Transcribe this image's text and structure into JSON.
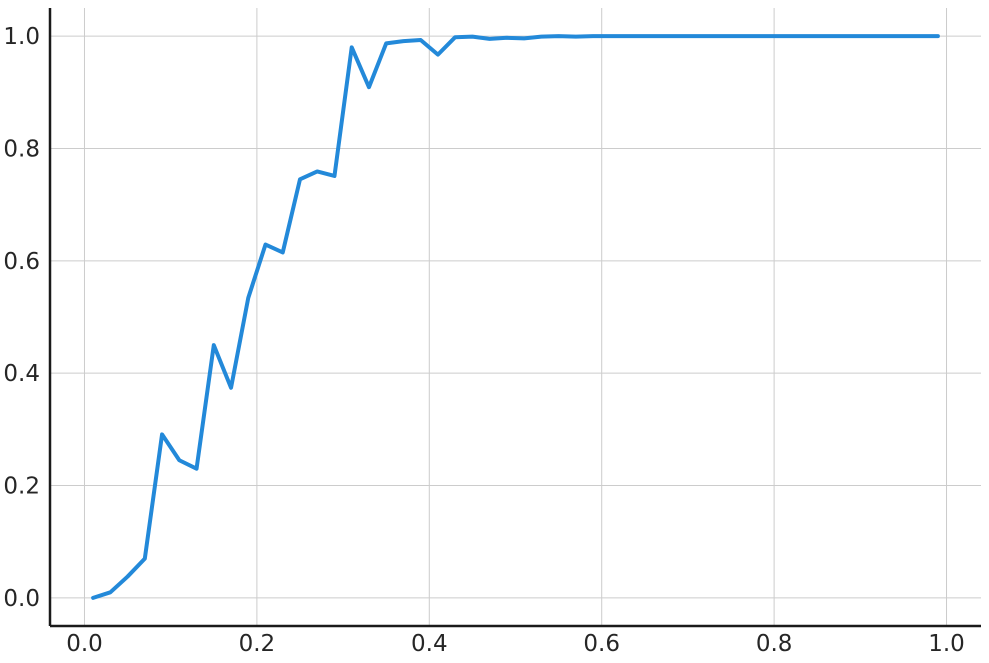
{
  "chart_data": {
    "type": "line",
    "title": "",
    "xlabel": "",
    "ylabel": "",
    "xlim": [
      -0.04,
      1.04
    ],
    "ylim": [
      -0.05,
      1.05
    ],
    "x_ticks": [
      0.0,
      0.2,
      0.4,
      0.6,
      0.8,
      1.0
    ],
    "x_tick_labels": [
      "0.0",
      "0.2",
      "0.4",
      "0.6",
      "0.8",
      "1.0"
    ],
    "y_ticks": [
      0.0,
      0.2,
      0.4,
      0.6,
      0.8,
      1.0
    ],
    "y_tick_labels": [
      "0.0",
      "0.2",
      "0.4",
      "0.6",
      "0.8",
      "1.0"
    ],
    "grid": true,
    "legend": "none",
    "series": [
      {
        "color": "#2389d9",
        "x": [
          0.01,
          0.03,
          0.05,
          0.07,
          0.09,
          0.11,
          0.13,
          0.15,
          0.17,
          0.19,
          0.21,
          0.23,
          0.25,
          0.27,
          0.29,
          0.31,
          0.33,
          0.35,
          0.37,
          0.39,
          0.41,
          0.43,
          0.45,
          0.47,
          0.49,
          0.51,
          0.53,
          0.55,
          0.57,
          0.59,
          0.61,
          0.63,
          0.65,
          0.67,
          0.69,
          0.71,
          0.73,
          0.75,
          0.77,
          0.79,
          0.81,
          0.83,
          0.85,
          0.87,
          0.89,
          0.91,
          0.93,
          0.95,
          0.97,
          0.99
        ],
        "y": [
          0.0,
          0.01,
          0.038,
          0.07,
          0.291,
          0.245,
          0.23,
          0.45,
          0.374,
          0.534,
          0.629,
          0.615,
          0.745,
          0.759,
          0.751,
          0.98,
          0.909,
          0.987,
          0.991,
          0.993,
          0.967,
          0.998,
          0.999,
          0.995,
          0.997,
          0.996,
          0.999,
          1.0,
          0.999,
          1.0,
          1.0,
          1.0,
          1.0,
          1.0,
          1.0,
          1.0,
          1.0,
          1.0,
          1.0,
          1.0,
          1.0,
          1.0,
          1.0,
          1.0,
          1.0,
          1.0,
          1.0,
          1.0,
          1.0,
          1.0
        ]
      }
    ]
  }
}
